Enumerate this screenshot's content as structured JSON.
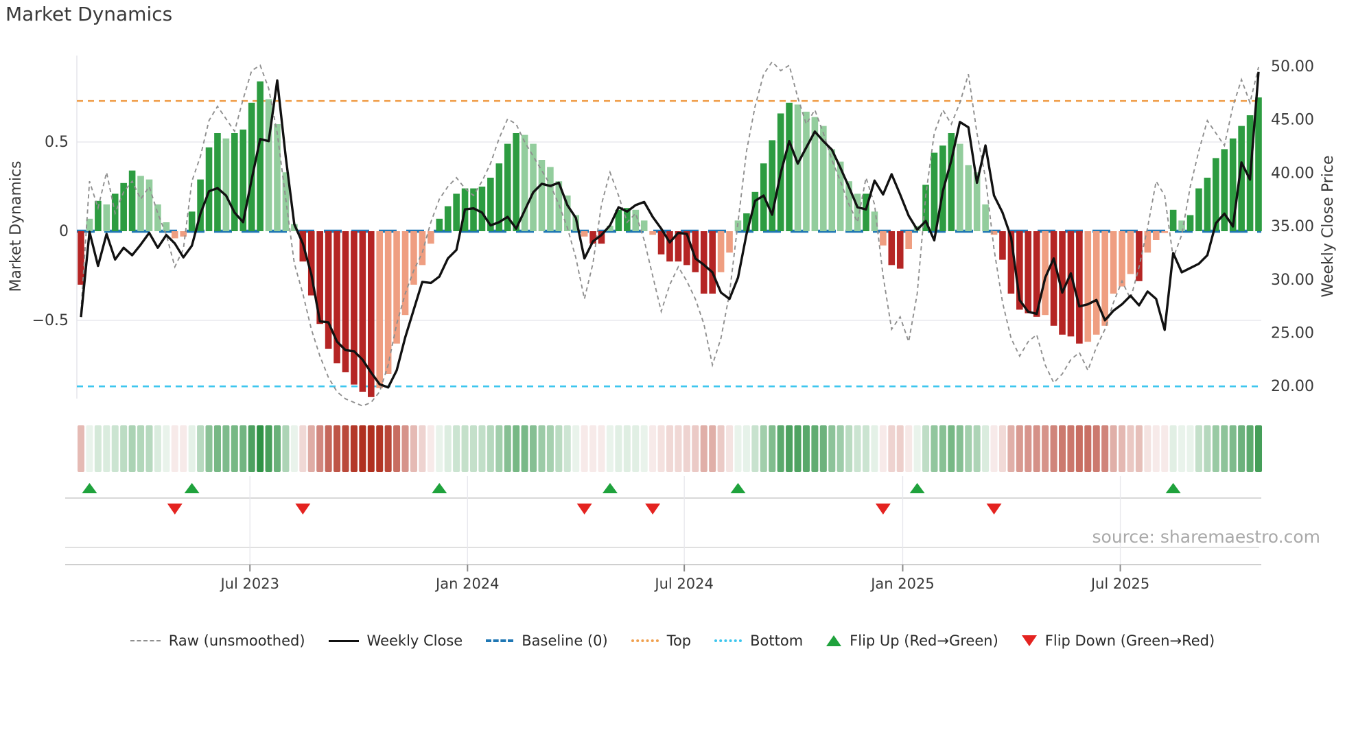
{
  "title": "Market Dynamics",
  "source_note": "source: sharemaestro.com",
  "axes": {
    "left_label": "Market Dynamics",
    "right_label": "Weekly Close Price",
    "left_ticks": [
      {
        "label": "0.5",
        "value": 0.5
      },
      {
        "label": "0",
        "value": 0
      },
      {
        "label": "−0.5",
        "value": -0.5
      }
    ],
    "right_ticks": [
      {
        "label": "50.00",
        "value": 50
      },
      {
        "label": "45.00",
        "value": 45
      },
      {
        "label": "40.00",
        "value": 40
      },
      {
        "label": "35.00",
        "value": 35
      },
      {
        "label": "30.00",
        "value": 30
      },
      {
        "label": "25.00",
        "value": 25
      },
      {
        "label": "20.00",
        "value": 20
      }
    ],
    "x_ticks": [
      {
        "label": "Jul 2023",
        "week": 19.8
      },
      {
        "label": "Jan 2024",
        "week": 45.3
      },
      {
        "label": "Jul 2024",
        "week": 70.7
      },
      {
        "label": "Jan 2025",
        "week": 96.3
      },
      {
        "label": "Jul 2025",
        "week": 121.8
      }
    ]
  },
  "legend": {
    "items": [
      {
        "label": "Raw (unsmoothed)",
        "type": "dashed-gray-line"
      },
      {
        "label": "Weekly Close",
        "type": "solid-black-line"
      },
      {
        "label": "Baseline (0)",
        "type": "blue-dashed-line"
      },
      {
        "label": "Top",
        "type": "orange-dotted-line"
      },
      {
        "label": "Bottom",
        "type": "cyan-dotted-line"
      },
      {
        "label": "Flip Up (Red→Green)",
        "type": "green-up-triangle"
      },
      {
        "label": "Flip Down (Green→Red)",
        "type": "red-down-triangle"
      }
    ]
  },
  "colors": {
    "bar_green_dark": "#2d9c41",
    "bar_green_light": "#93cd9d",
    "bar_red_dark": "#b52524",
    "bar_red_light": "#ef9e81",
    "heat_green": "#208a38",
    "heat_red": "#b0301f",
    "price_line": "#111111",
    "raw_line": "#8f8f8f",
    "baseline": "#1f77b4",
    "top_line": "#f0a04e",
    "bottom_line": "#3ec6ee",
    "flip_up": "#1fa23c",
    "flip_down": "#e42320",
    "grid": "#e8e8ee",
    "axis_text": "#3a3a3a",
    "muted_line": "#cccccc"
  },
  "chart_data": {
    "type": "combo",
    "description": "Weekly market-dynamics oscillator bars with heatmap strip, flip markers, raw oscillator (dashed, left axis) and weekly close price (solid, right axis)",
    "n_weeks": 139,
    "left_axis_range": [
      -0.95,
      0.95
    ],
    "right_axis_range": [
      19.5,
      50.5
    ],
    "thresholds": {
      "baseline": 0,
      "top": 0.73,
      "bottom": -0.87
    },
    "grid": "horizontal-only",
    "legend_position": "bottom",
    "series": [
      {
        "name": "Oscillator (bars + heatmap)",
        "axis": "left",
        "values": [
          -0.3,
          0.07,
          0.17,
          0.15,
          0.21,
          0.27,
          0.34,
          0.31,
          0.29,
          0.15,
          0.05,
          -0.04,
          -0.03,
          0.11,
          0.29,
          0.47,
          0.55,
          0.52,
          0.55,
          0.57,
          0.72,
          0.84,
          0.74,
          0.6,
          0.33,
          0.04,
          -0.17,
          -0.36,
          -0.52,
          -0.66,
          -0.74,
          -0.79,
          -0.86,
          -0.9,
          -0.93,
          -0.88,
          -0.8,
          -0.63,
          -0.47,
          -0.3,
          -0.19,
          -0.07,
          0.07,
          0.14,
          0.21,
          0.24,
          0.24,
          0.25,
          0.3,
          0.38,
          0.49,
          0.55,
          0.54,
          0.49,
          0.4,
          0.36,
          0.28,
          0.2,
          0.09,
          -0.03,
          -0.07,
          -0.07,
          0.03,
          0.12,
          0.13,
          0.12,
          0.06,
          -0.02,
          -0.13,
          -0.17,
          -0.17,
          -0.19,
          -0.23,
          -0.35,
          -0.35,
          -0.23,
          -0.12,
          0.06,
          0.1,
          0.22,
          0.38,
          0.51,
          0.66,
          0.72,
          0.71,
          0.67,
          0.64,
          0.59,
          0.46,
          0.39,
          0.28,
          0.21,
          0.21,
          0.11,
          -0.08,
          -0.19,
          -0.21,
          -0.1,
          0.03,
          0.26,
          0.44,
          0.48,
          0.55,
          0.49,
          0.37,
          0.33,
          0.15,
          -0.02,
          -0.16,
          -0.35,
          -0.44,
          -0.46,
          -0.48,
          -0.47,
          -0.53,
          -0.58,
          -0.59,
          -0.63,
          -0.62,
          -0.58,
          -0.53,
          -0.35,
          -0.31,
          -0.24,
          -0.28,
          -0.12,
          -0.05,
          -0.01,
          0.12,
          0.06,
          0.09,
          0.24,
          0.3,
          0.41,
          0.46,
          0.52,
          0.59,
          0.65,
          0.75
        ]
      },
      {
        "name": "Raw (unsmoothed)",
        "axis": "left",
        "values": [
          -0.45,
          0.28,
          0.13,
          0.33,
          0.1,
          0.22,
          0.28,
          0.18,
          0.25,
          0.1,
          -0.02,
          -0.2,
          -0.1,
          0.28,
          0.42,
          0.62,
          0.7,
          0.63,
          0.56,
          0.74,
          0.9,
          0.93,
          0.8,
          0.55,
          0.18,
          -0.18,
          -0.35,
          -0.55,
          -0.7,
          -0.82,
          -0.9,
          -0.94,
          -0.96,
          -0.98,
          -0.96,
          -0.9,
          -0.75,
          -0.52,
          -0.35,
          -0.22,
          -0.12,
          0.05,
          0.18,
          0.25,
          0.3,
          0.24,
          0.2,
          0.28,
          0.38,
          0.52,
          0.63,
          0.6,
          0.5,
          0.42,
          0.34,
          0.26,
          0.15,
          0.02,
          -0.15,
          -0.38,
          -0.18,
          0.15,
          0.33,
          0.2,
          0.05,
          0.1,
          -0.05,
          -0.25,
          -0.45,
          -0.3,
          -0.2,
          -0.28,
          -0.38,
          -0.52,
          -0.75,
          -0.6,
          -0.35,
          0.05,
          0.45,
          0.7,
          0.88,
          0.95,
          0.9,
          0.93,
          0.75,
          0.6,
          0.68,
          0.55,
          0.4,
          0.28,
          0.15,
          0.05,
          0.3,
          0.15,
          -0.25,
          -0.55,
          -0.48,
          -0.62,
          -0.35,
          0.2,
          0.55,
          0.68,
          0.6,
          0.72,
          0.88,
          0.55,
          0.3,
          -0.1,
          -0.4,
          -0.6,
          -0.7,
          -0.62,
          -0.58,
          -0.75,
          -0.85,
          -0.8,
          -0.72,
          -0.68,
          -0.78,
          -0.65,
          -0.55,
          -0.4,
          -0.28,
          -0.38,
          -0.2,
          0.02,
          0.28,
          0.2,
          -0.15,
          -0.02,
          0.25,
          0.45,
          0.62,
          0.55,
          0.48,
          0.7,
          0.85,
          0.72,
          0.92
        ]
      },
      {
        "name": "Weekly Close",
        "axis": "right",
        "values": [
          26.5,
          34.5,
          31.3,
          34.3,
          31.9,
          33.0,
          32.3,
          33.3,
          34.4,
          33.0,
          34.2,
          33.4,
          32.1,
          33.2,
          36.2,
          38.3,
          38.6,
          37.9,
          36.3,
          35.4,
          39.4,
          43.2,
          43.0,
          48.7,
          41.5,
          35.2,
          33.4,
          30.5,
          26.1,
          26.0,
          24.2,
          23.4,
          23.3,
          22.5,
          21.3,
          20.2,
          19.9,
          21.5,
          24.6,
          27.2,
          29.8,
          29.7,
          30.3,
          32.0,
          32.8,
          36.6,
          36.7,
          36.3,
          35.1,
          35.4,
          35.9,
          34.8,
          36.5,
          38.2,
          39.0,
          38.8,
          39.1,
          37.0,
          35.8,
          32.0,
          33.6,
          34.2,
          35.1,
          36.8,
          36.4,
          37.0,
          37.3,
          35.9,
          34.8,
          33.5,
          34.4,
          34.3,
          32.0,
          31.4,
          30.7,
          28.8,
          28.2,
          30.2,
          34.3,
          37.4,
          37.9,
          36.1,
          40.0,
          43.0,
          40.9,
          42.4,
          43.9,
          43.0,
          42.2,
          40.5,
          38.7,
          36.8,
          36.6,
          39.3,
          38.0,
          39.9,
          38.0,
          36.0,
          34.7,
          35.5,
          33.7,
          38.3,
          41.2,
          44.8,
          44.3,
          39.1,
          42.6,
          37.9,
          36.3,
          34.0,
          28.1,
          27.0,
          26.8,
          30.2,
          32.0,
          28.8,
          30.6,
          27.5,
          27.7,
          28.1,
          26.2,
          27.1,
          27.7,
          28.5,
          27.6,
          28.9,
          28.2,
          25.3,
          32.5,
          30.7,
          31.1,
          31.5,
          32.3,
          35.3,
          36.2,
          35.0,
          41.0,
          39.4,
          49.5
        ]
      }
    ],
    "flips": {
      "up_weeks": [
        1,
        13,
        42,
        62,
        77,
        98,
        128
      ],
      "down_weeks": [
        11,
        26,
        59,
        67,
        94,
        107
      ]
    }
  }
}
